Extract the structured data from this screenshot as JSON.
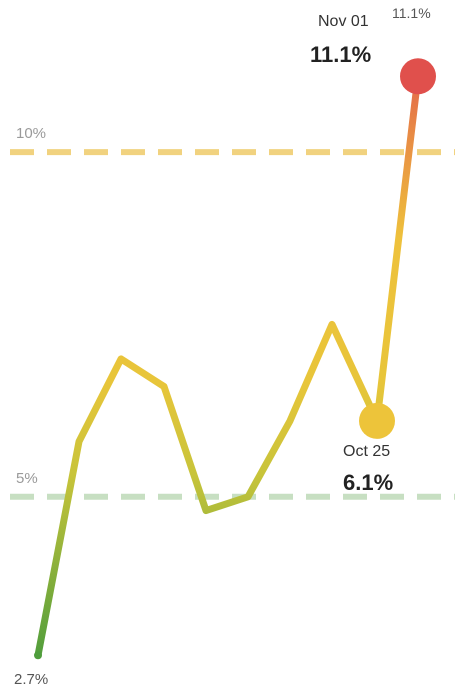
{
  "chart_data": {
    "type": "line",
    "title": "",
    "xlabel": "",
    "ylabel": "",
    "ylim": [
      2.4,
      11.8
    ],
    "grid": false,
    "values": [
      2.7,
      5.8,
      7.0,
      6.6,
      4.8,
      5.0,
      6.1,
      7.5,
      6.1,
      11.1
    ],
    "thresholds": [
      {
        "label": "10%",
        "value": 10.0,
        "color": "#f1d27f"
      },
      {
        "label": "5%",
        "value": 5.0,
        "color": "#c7dfc2"
      }
    ],
    "annotations": {
      "start": {
        "value_label": "2.7%"
      },
      "prev": {
        "date": "Oct 25",
        "value_label": "6.1%"
      },
      "last": {
        "date": "Nov 01",
        "value_label": "11.1%",
        "corner_label": "11.1%"
      }
    },
    "colors": {
      "low": "#4f9d3c",
      "mid": "#e8c53a",
      "high": "#e0524c",
      "prev_marker": "#edc43a",
      "last_marker": "#e0504c"
    }
  }
}
